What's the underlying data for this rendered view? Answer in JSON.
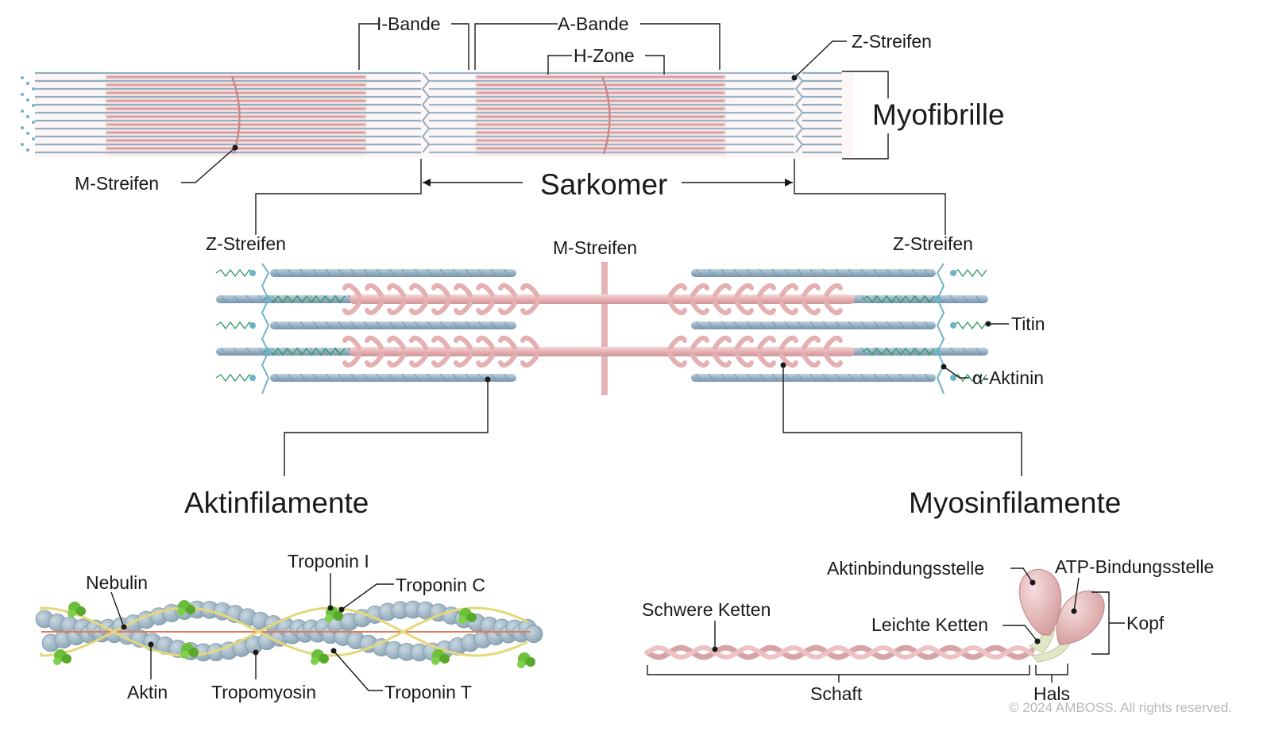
{
  "labels": {
    "i_band": "I-Bande",
    "a_band": "A-Bande",
    "h_zone": "H-Zone",
    "z_line_top": "Z-Streifen",
    "myofibril": "Myofibrille",
    "m_line_top": "M-Streifen",
    "sarcomere": "Sarkomer",
    "z_line_left": "Z-Streifen",
    "m_line_mid": "M-Streifen",
    "z_line_right": "Z-Streifen",
    "titin": "Titin",
    "alpha_actinin": "α-Aktinin",
    "actin_filaments": "Aktinfilamente",
    "myosin_filaments": "Myosinfilamente",
    "nebulin": "Nebulin",
    "troponin_i": "Troponin I",
    "troponin_c": "Troponin C",
    "actin": "Aktin",
    "tropomyosin": "Tropomyosin",
    "troponin_t": "Troponin T",
    "actin_binding_site": "Aktinbindungsstelle",
    "atp_binding_site": "ATP-Bindungsstelle",
    "heavy_chains": "Schwere Ketten",
    "light_chains": "Leichte Ketten",
    "head": "Kopf",
    "shaft": "Schaft",
    "neck": "Hals"
  },
  "copyright": "© 2024 AMBOSS. All rights reserved.",
  "colors": {
    "actin_blue": "#93aec3",
    "actin_dark": "#7f9bb1",
    "myosin_pink": "#d9a0a0",
    "myosin_light": "#f4d2d2",
    "band_tint": "#fbeeee",
    "titin_green": "#2e9a5e",
    "actinin_teal": "#6fb3c8",
    "troponin_green": "#6bbf3a",
    "tropomyosin_yellow": "#e5d77a",
    "nebulin_red": "#e07a5a",
    "actin_bead": "#a9bfcc"
  }
}
